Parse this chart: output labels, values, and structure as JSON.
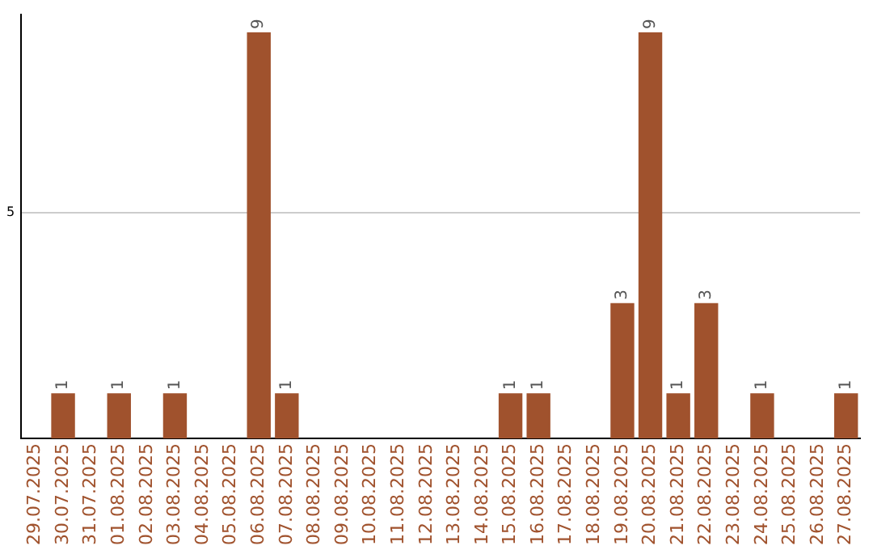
{
  "chart_data": {
    "type": "bar",
    "categories": [
      "29.07.2025",
      "30.07.2025",
      "31.07.2025",
      "01.08.2025",
      "02.08.2025",
      "03.08.2025",
      "04.08.2025",
      "05.08.2025",
      "06.08.2025",
      "07.08.2025",
      "08.08.2025",
      "09.08.2025",
      "10.08.2025",
      "11.08.2025",
      "12.08.2025",
      "13.08.2025",
      "14.08.2025",
      "15.08.2025",
      "16.08.2025",
      "17.08.2025",
      "18.08.2025",
      "19.08.2025",
      "20.08.2025",
      "21.08.2025",
      "22.08.2025",
      "23.08.2025",
      "24.08.2025",
      "25.08.2025",
      "26.08.2025",
      "27.08.2025"
    ],
    "values": [
      0,
      1,
      0,
      1,
      0,
      1,
      0,
      0,
      9,
      1,
      0,
      0,
      0,
      0,
      0,
      0,
      0,
      1,
      1,
      0,
      0,
      3,
      9,
      1,
      3,
      0,
      1,
      0,
      0,
      1
    ],
    "value_labels": [
      null,
      "1",
      null,
      "1",
      null,
      "1",
      null,
      null,
      "9",
      "1",
      null,
      null,
      null,
      null,
      null,
      null,
      null,
      "1",
      "1",
      null,
      null,
      "3",
      "9",
      "1",
      "3",
      null,
      "1",
      null,
      null,
      "1"
    ],
    "color": "#a0522d",
    "ylim": [
      0,
      9.4
    ],
    "yticks": [
      5
    ],
    "grid": "y",
    "legend": false
  }
}
